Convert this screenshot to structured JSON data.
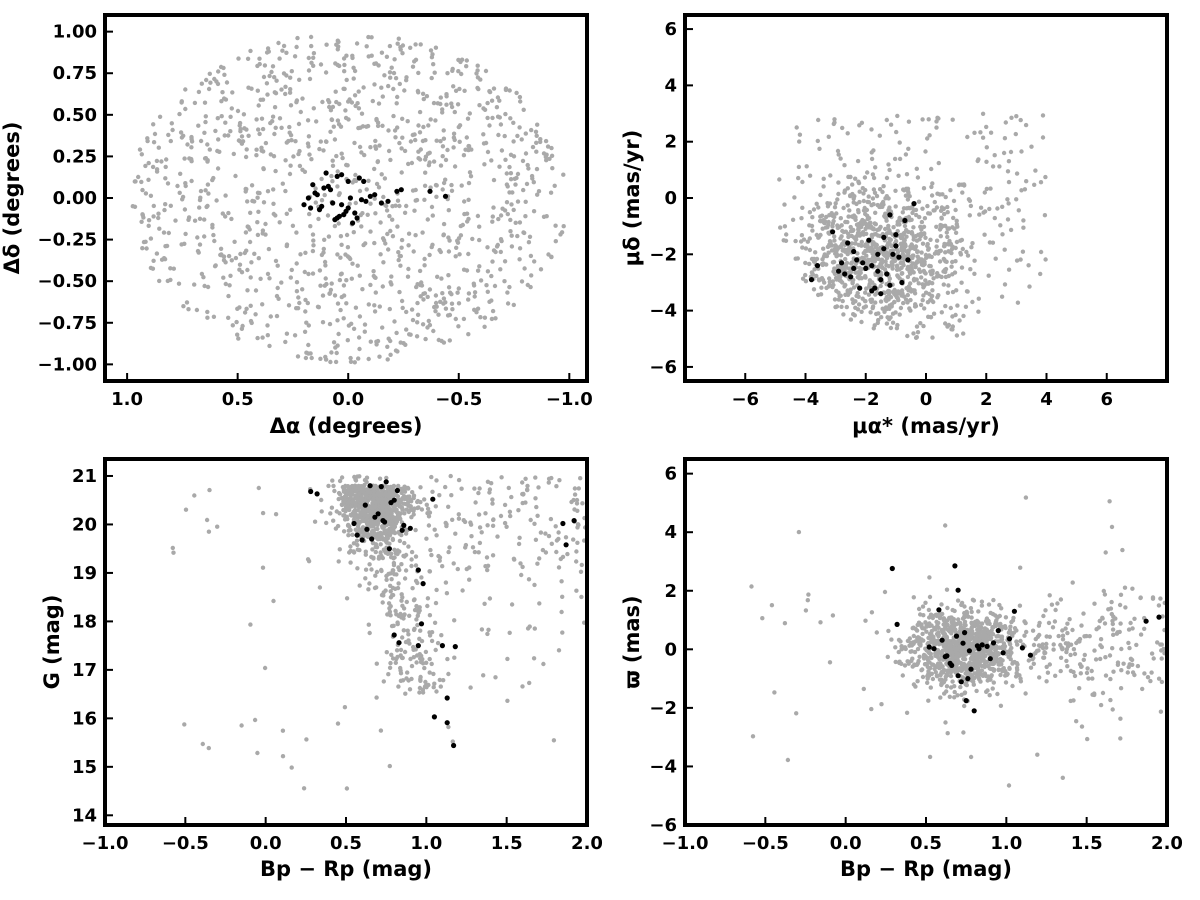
{
  "colors": {
    "field": "#a9a9a9",
    "members": "#000000"
  },
  "chart_data": [
    {
      "type": "scatter",
      "xlabel": "Δα (degrees)",
      "ylabel": "Δδ (degrees)",
      "xlim": [
        1.1,
        -1.08
      ],
      "ylim": [
        -1.1,
        1.1
      ],
      "xticks": [
        1.0,
        0.5,
        0.0,
        -0.5,
        -1.0
      ],
      "xtick_labels": [
        "1.0",
        "0.5",
        "0.0",
        "−0.5",
        "−1.0"
      ],
      "yticks": [
        -1.0,
        -0.75,
        -0.5,
        -0.25,
        0.0,
        0.25,
        0.5,
        0.75,
        1.0
      ],
      "ytick_labels": [
        "−1.00",
        "−0.75",
        "−0.50",
        "−0.25",
        "0.00",
        "0.25",
        "0.50",
        "0.75",
        "1.00"
      ],
      "grid": false,
      "series": [
        {
          "role": "field",
          "color": "#a9a9a9",
          "count": 1200,
          "distribution": "uniform disk, radius 1.0 deg, centre (0,0)"
        },
        {
          "role": "members",
          "color": "#000000",
          "x": [
            0.1,
            0.08,
            0.05,
            0.03,
            0.02,
            0.0,
            -0.02,
            -0.04,
            -0.06,
            -0.07,
            0.12,
            0.15,
            0.18,
            0.2,
            -0.1,
            -0.12,
            -0.15,
            -0.18,
            -0.22,
            -0.24,
            -0.37,
            -0.44,
            0.01,
            -0.03,
            0.05,
            0.07,
            0.13,
            0.16,
            -0.01,
            0.09,
            0.04,
            -0.05,
            0.11,
            0.06,
            0.17,
            -0.08,
            0.14,
            0.03,
            0.0
          ],
          "y": [
            0.15,
            0.05,
            0.13,
            0.14,
            -0.1,
            -0.06,
            -0.15,
            -0.12,
            -0.01,
            0.1,
            -0.05,
            0.03,
            0.0,
            -0.04,
            0.01,
            0.02,
            -0.03,
            -0.02,
            0.04,
            0.05,
            0.04,
            0.01,
            -0.08,
            -0.09,
            -0.12,
            -0.03,
            -0.07,
            0.08,
            0.0,
            0.07,
            -0.11,
            0.12,
            0.06,
            -0.13,
            -0.06,
            -0.02,
            0.02,
            -0.04,
            0.1
          ]
        }
      ]
    },
    {
      "type": "scatter",
      "xlabel": "μα* (mas/yr)",
      "ylabel": "μδ (mas/yr)",
      "xlim": [
        -8,
        8
      ],
      "ylim": [
        -6.5,
        6.5
      ],
      "xticks": [
        -6,
        -4,
        -2,
        0,
        2,
        4,
        6
      ],
      "xtick_labels": [
        "−6",
        "−4",
        "−2",
        "0",
        "2",
        "4",
        "6"
      ],
      "yticks": [
        -6,
        -4,
        -2,
        0,
        2,
        4,
        6
      ],
      "ytick_labels": [
        "−6",
        "−4",
        "−2",
        "0",
        "2",
        "4",
        "6"
      ],
      "grid": false,
      "series": [
        {
          "role": "field",
          "color": "#a9a9a9",
          "count": 1200,
          "distribution": "clump centred near (-1.5, -2), bounded by a circle of radius ~5 around (0,0)"
        },
        {
          "role": "members",
          "color": "#000000",
          "x": [
            -0.4,
            -0.7,
            -1.2,
            -1.0,
            -1.4,
            -2.6,
            -2.4,
            -3.1,
            -2.8,
            -2.9,
            -2.2,
            -1.8,
            -2.0,
            -1.6,
            -1.3,
            -1.1,
            -0.9,
            -0.8,
            -1.5,
            -1.7,
            -2.3,
            -2.5,
            -3.6,
            -3.8,
            -1.9,
            -1.4,
            -1.2,
            -0.6,
            -2.7,
            -1.6,
            -2.1,
            -1.0,
            -1.5,
            -2.4,
            -1.8
          ],
          "y": [
            -0.2,
            -0.8,
            -0.6,
            -1.3,
            -1.4,
            -1.6,
            -1.9,
            -1.2,
            -2.3,
            -2.6,
            -3.2,
            -2.4,
            -2.5,
            -2.6,
            -2.7,
            -2.0,
            -2.1,
            -3.0,
            -3.4,
            -3.2,
            -2.2,
            -2.8,
            -2.4,
            -2.9,
            -1.5,
            -1.8,
            -3.1,
            -2.2,
            -2.7,
            -2.0,
            -2.3,
            -1.7,
            -2.9,
            -2.5,
            -3.3
          ]
        }
      ]
    },
    {
      "type": "scatter",
      "xlabel": "Bp − Rp (mag)",
      "ylabel": "G (mag)",
      "xlim": [
        -1.0,
        2.0
      ],
      "ylim": [
        13.8,
        21.35
      ],
      "xticks": [
        -1.0,
        -0.5,
        0.0,
        0.5,
        1.0,
        1.5,
        2.0
      ],
      "xtick_labels": [
        "−1.0",
        "−0.5",
        "0.0",
        "0.5",
        "1.0",
        "1.5",
        "2.0"
      ],
      "yticks": [
        14,
        15,
        16,
        17,
        18,
        19,
        20,
        21
      ],
      "ytick_labels": [
        "14",
        "15",
        "16",
        "17",
        "18",
        "19",
        "20",
        "21"
      ],
      "grid": false,
      "series": [
        {
          "role": "field",
          "color": "#a9a9a9",
          "count": 1200,
          "distribution": "dense clump near colour 0.7, G 20; sequence towards colour 1.0, G 17; scattered red stars up to colour 2.0"
        },
        {
          "role": "members",
          "color": "#000000",
          "x": [
            0.28,
            0.32,
            0.65,
            0.72,
            0.75,
            0.82,
            1.04,
            0.55,
            0.62,
            0.68,
            0.7,
            0.73,
            0.74,
            0.8,
            0.86,
            0.9,
            0.57,
            0.6,
            0.63,
            0.77,
            0.85,
            0.95,
            0.98,
            0.97,
            0.95,
            1.1,
            1.13,
            0.8,
            0.83,
            1.13,
            1.17,
            1.05,
            1.18,
            1.85,
            1.92,
            1.87,
            0.66,
            0.78
          ],
          "y": [
            20.68,
            20.63,
            20.8,
            20.78,
            20.88,
            20.7,
            20.52,
            20.02,
            20.4,
            20.15,
            20.22,
            20.08,
            20.05,
            20.5,
            19.98,
            19.92,
            19.78,
            19.68,
            19.9,
            19.5,
            19.88,
            19.06,
            18.78,
            17.95,
            17.5,
            17.5,
            15.91,
            17.72,
            17.56,
            16.42,
            15.44,
            16.03,
            17.48,
            20.02,
            20.08,
            19.58,
            19.7,
            20.45
          ]
        }
      ]
    },
    {
      "type": "scatter",
      "xlabel": "Bp − Rp (mag)",
      "ylabel": "ϖ (mas)",
      "xlim": [
        -1.0,
        2.0
      ],
      "ylim": [
        -6.0,
        6.5
      ],
      "xticks": [
        -1.0,
        -0.5,
        0.0,
        0.5,
        1.0,
        1.5,
        2.0
      ],
      "xtick_labels": [
        "−1.0",
        "−0.5",
        "0.0",
        "0.5",
        "1.0",
        "1.5",
        "2.0"
      ],
      "yticks": [
        -6,
        -4,
        -2,
        0,
        2,
        4,
        6
      ],
      "ytick_labels": [
        "−6",
        "−4",
        "−2",
        "0",
        "2",
        "4",
        "6"
      ],
      "grid": false,
      "series": [
        {
          "role": "field",
          "color": "#a9a9a9",
          "count": 1200,
          "distribution": "dense clump near colour 0.75, parallax 0, spread ~1 mas; sparse stars out to colour 2.0"
        },
        {
          "role": "members",
          "color": "#000000",
          "x": [
            0.29,
            0.32,
            0.68,
            0.7,
            0.58,
            0.63,
            0.72,
            0.75,
            0.82,
            0.88,
            0.92,
            0.95,
            1.05,
            1.1,
            1.15,
            0.55,
            0.6,
            0.66,
            0.74,
            0.78,
            0.8,
            0.85,
            0.52,
            0.65,
            0.69,
            0.73,
            0.77,
            0.9,
            0.98,
            1.02,
            1.87,
            1.95,
            0.62,
            0.76,
            0.7,
            0.83
          ],
          "y": [
            2.76,
            0.85,
            2.85,
            2.02,
            1.35,
            -0.22,
            -1.11,
            -1.75,
            0.12,
            0.1,
            0.22,
            0.64,
            1.3,
            0.05,
            -0.2,
            0.02,
            0.31,
            -0.55,
            0.57,
            -0.68,
            -2.1,
            0.15,
            0.08,
            -0.48,
            0.45,
            0.21,
            -0.05,
            -0.32,
            -0.12,
            0.36,
            0.96,
            1.1,
            -0.25,
            -1.0,
            -0.9,
            0.02
          ]
        }
      ]
    }
  ]
}
